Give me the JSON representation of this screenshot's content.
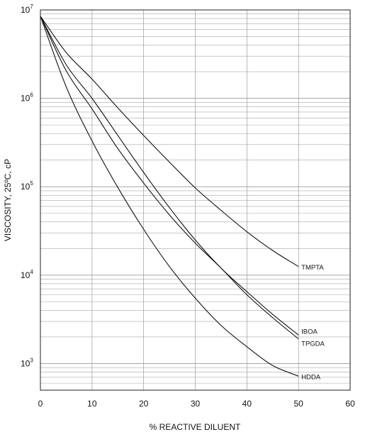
{
  "chart_data": {
    "type": "line",
    "title": "",
    "xlabel": "% REACTIVE DILUENT",
    "ylabel": "VISCOSITY, 25ºC, cP",
    "xlim": [
      0,
      60
    ],
    "ylim": [
      500,
      10000000
    ],
    "yscale": "log",
    "grid": true,
    "legend": "inline labels at line ends",
    "x_ticks": [
      0,
      10,
      20,
      30,
      40,
      50,
      60
    ],
    "y_ticks": [
      {
        "value": 1000,
        "base": "10",
        "exp": "3"
      },
      {
        "value": 10000,
        "base": "10",
        "exp": "4"
      },
      {
        "value": 100000,
        "base": "10",
        "exp": "5"
      },
      {
        "value": 1000000,
        "base": "10",
        "exp": "6"
      },
      {
        "value": 10000000,
        "base": "10",
        "exp": "7"
      }
    ],
    "series": [
      {
        "name": "TMPTA",
        "x": [
          0,
          5,
          10,
          15,
          20,
          25,
          30,
          35,
          40,
          45,
          50
        ],
        "y": [
          8500000,
          3300000,
          1650000,
          780000,
          380000,
          190000,
          97000,
          54000,
          31000,
          19000,
          12500
        ]
      },
      {
        "name": "IBOA",
        "x": [
          0,
          5,
          10,
          15,
          20,
          25,
          30,
          35,
          40,
          45,
          50
        ],
        "y": [
          8500000,
          2400000,
          1000000,
          380000,
          145000,
          58000,
          25000,
          12000,
          6500,
          3600,
          2100
        ]
      },
      {
        "name": "TPGDA",
        "x": [
          0,
          5,
          10,
          15,
          20,
          25,
          30,
          35,
          40,
          45,
          50
        ],
        "y": [
          8500000,
          2050000,
          760000,
          270000,
          110000,
          48000,
          23000,
          12000,
          6000,
          3300,
          1900
        ]
      },
      {
        "name": "HDDA",
        "x": [
          0,
          5,
          10,
          15,
          20,
          25,
          30,
          35,
          40,
          45,
          50
        ],
        "y": [
          8500000,
          1350000,
          330000,
          98000,
          33000,
          12500,
          5500,
          2700,
          1550,
          950,
          720
        ]
      }
    ]
  }
}
